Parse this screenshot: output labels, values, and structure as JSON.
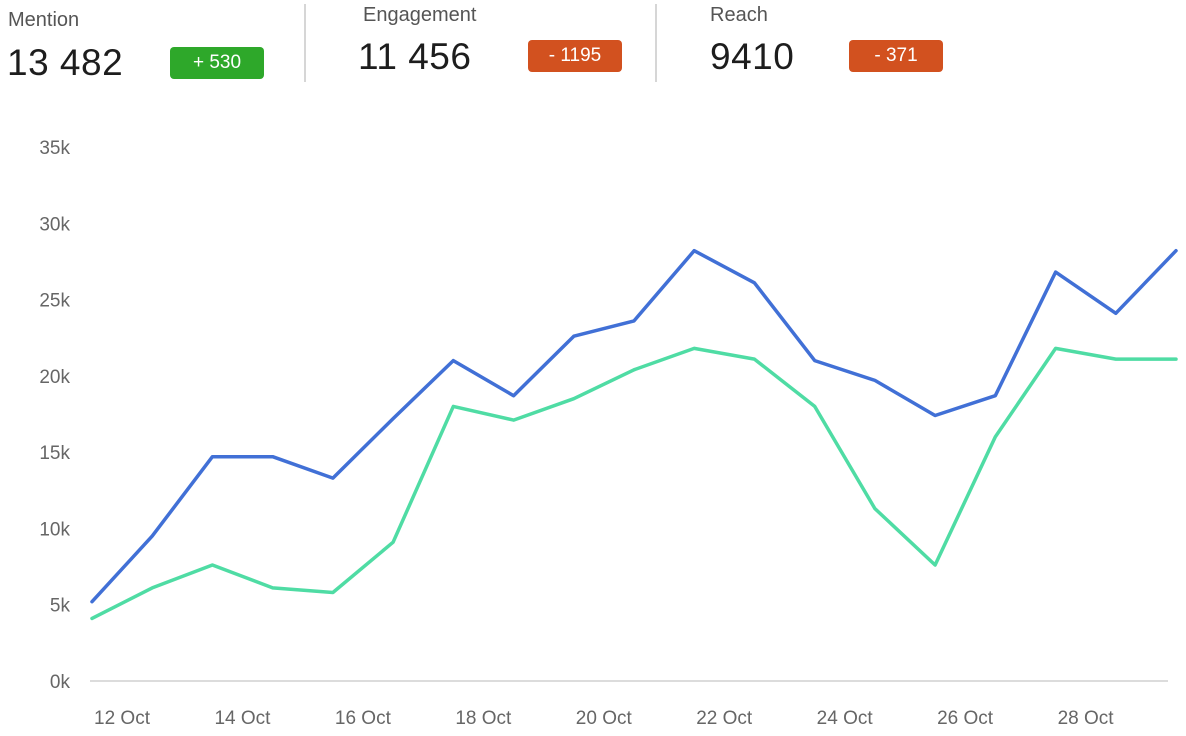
{
  "kpis": [
    {
      "label": "Mention",
      "value": "13 482",
      "delta": "+ 530",
      "status": "up"
    },
    {
      "label": "Engagement",
      "value": "11 456",
      "delta": "- 1195",
      "status": "down"
    },
    {
      "label": "Reach",
      "value": "9410",
      "delta": "- 371",
      "status": "down"
    }
  ],
  "colors": {
    "up": "#2ea82a",
    "down": "#d2511f",
    "series_blue": "#4170d6",
    "series_green": "#4fdca4",
    "axis": "#d0d0d0",
    "tick_text": "#666666"
  },
  "chart_data": {
    "type": "line",
    "x": [
      "12 Oct",
      "13 Oct",
      "14 Oct",
      "15 Oct",
      "16 Oct",
      "17 Oct",
      "18 Oct",
      "19 Oct",
      "20 Oct",
      "21 Oct",
      "22 Oct",
      "23 Oct",
      "24 Oct",
      "25 Oct",
      "26 Oct",
      "27 Oct",
      "28 Oct",
      "29 Oct",
      "30 Oct"
    ],
    "x_tick_labels": [
      "12 Oct",
      "14 Oct",
      "16 Oct",
      "18 Oct",
      "20 Oct",
      "22 Oct",
      "24 Oct",
      "26 Oct",
      "28 Oct"
    ],
    "y_tick_labels": [
      "0k",
      "5k",
      "10k",
      "15k",
      "20k",
      "25k",
      "30k",
      "35k"
    ],
    "ylim": [
      0,
      35000
    ],
    "grid": false,
    "legend": "none",
    "series": [
      {
        "values": [
          5200,
          9500,
          14700,
          14700,
          13300,
          17200,
          21000,
          18700,
          22600,
          23600,
          28200,
          26100,
          21000,
          19700,
          17400,
          18700,
          26800,
          24100,
          28200
        ]
      },
      {
        "values": [
          4100,
          6100,
          7600,
          6100,
          5800,
          9100,
          18000,
          17100,
          18500,
          20400,
          21800,
          21100,
          18000,
          11300,
          7600,
          16000,
          21800,
          21100,
          21100
        ]
      }
    ]
  }
}
